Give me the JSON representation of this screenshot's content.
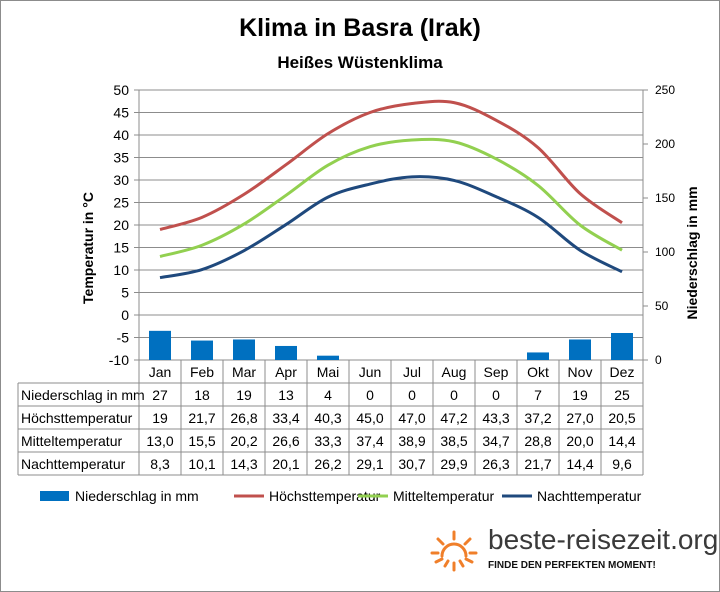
{
  "chart_data": {
    "type": "bar+line",
    "title": "Klima in Basra (Irak)",
    "subtitle": "Heißes Wüstenklima",
    "categories": [
      "Jan",
      "Feb",
      "Mar",
      "Apr",
      "Mai",
      "Jun",
      "Jul",
      "Aug",
      "Sep",
      "Okt",
      "Nov",
      "Dez"
    ],
    "y_left": {
      "label": "Temperatur in °C",
      "min": -10,
      "max": 50,
      "step": 5
    },
    "y_right": {
      "label": "Niederschlag in mm",
      "min": 0,
      "max": 250,
      "step": 50
    },
    "grid": true,
    "legend_position": "bottom",
    "bar_series": {
      "name": "Niederschlag in mm",
      "color": "#0070c0",
      "axis": "right",
      "values": [
        27,
        18,
        19,
        13,
        4,
        0,
        0,
        0,
        0,
        7,
        19,
        25
      ]
    },
    "line_series": [
      {
        "name": "Höchsttemperatur",
        "color": "#c0504d",
        "axis": "left",
        "values": [
          19,
          21.7,
          26.8,
          33.4,
          40.3,
          45.0,
          47.0,
          47.2,
          43.3,
          37.2,
          27.0,
          20.5
        ]
      },
      {
        "name": "Mitteltemperatur",
        "color": "#92d050",
        "axis": "left",
        "values": [
          13.0,
          15.5,
          20.2,
          26.6,
          33.3,
          37.4,
          38.9,
          38.5,
          34.7,
          28.8,
          20.0,
          14.4
        ]
      },
      {
        "name": "Nachttemperatur",
        "color": "#1f497d",
        "axis": "left",
        "values": [
          8.3,
          10.1,
          14.3,
          20.1,
          26.2,
          29.1,
          30.7,
          29.9,
          26.3,
          21.7,
          14.4,
          9.6
        ]
      }
    ],
    "table": {
      "rows": [
        {
          "label": "Niederschlag in mm",
          "cells": [
            "27",
            "18",
            "19",
            "13",
            "4",
            "0",
            "0",
            "0",
            "0",
            "7",
            "19",
            "25"
          ]
        },
        {
          "label": "Höchsttemperatur",
          "cells": [
            "19",
            "21,7",
            "26,8",
            "33,4",
            "40,3",
            "45,0",
            "47,0",
            "47,2",
            "43,3",
            "37,2",
            "27,0",
            "20,5"
          ]
        },
        {
          "label": "Mitteltemperatur",
          "cells": [
            "13,0",
            "15,5",
            "20,2",
            "26,6",
            "33,3",
            "37,4",
            "38,9",
            "38,5",
            "34,7",
            "28,8",
            "20,0",
            "14,4"
          ]
        },
        {
          "label": "Nachttemperatur",
          "cells": [
            "8,3",
            "10,1",
            "14,3",
            "20,1",
            "26,2",
            "29,1",
            "30,7",
            "29,9",
            "26,3",
            "21,7",
            "14,4",
            "9,6"
          ]
        }
      ]
    }
  },
  "logo": {
    "name": "beste-reisezeit.org",
    "slogan": "FINDE DEN PERFEKTEN MOMENT!",
    "icon": "sun-icon",
    "color": "#f07f2a"
  }
}
